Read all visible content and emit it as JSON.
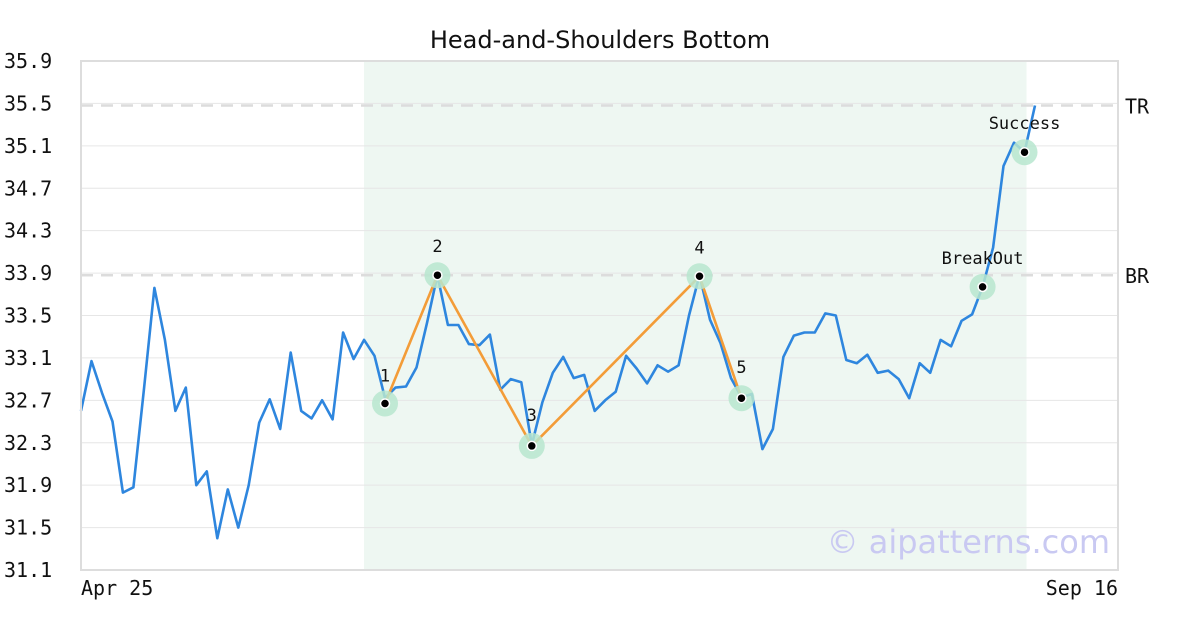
{
  "chart_data": {
    "type": "line",
    "title": "Head-and-Shoulders Bottom",
    "xlabel": "",
    "ylabel": "",
    "ylim": [
      31.1,
      35.9
    ],
    "yticks": [
      "35.9",
      "35.5",
      "35.1",
      "34.7",
      "34.3",
      "33.9",
      "33.5",
      "33.1",
      "32.7",
      "32.3",
      "31.9",
      "31.5",
      "31.1"
    ],
    "xtick_labels": [
      "Apr 25",
      "Sep 16"
    ],
    "grid": true,
    "series": [
      {
        "color": "#2e86de",
        "values": [
          32.6,
          33.07,
          32.77,
          32.5,
          31.83,
          31.88,
          32.8,
          33.76,
          33.27,
          32.6,
          32.82,
          31.9,
          32.03,
          31.4,
          31.86,
          31.5,
          31.9,
          32.49,
          32.71,
          32.43,
          33.15,
          32.6,
          32.53,
          32.7,
          32.52,
          33.34,
          33.09,
          33.27,
          33.12,
          32.72,
          32.82,
          32.83,
          33.01,
          33.43,
          33.88,
          33.41,
          33.41,
          33.23,
          33.22,
          33.32,
          32.8,
          32.9,
          32.87,
          32.28,
          32.68,
          32.96,
          33.11,
          32.91,
          32.94,
          32.6,
          32.7,
          32.78,
          33.12,
          33.0,
          32.86,
          33.03,
          32.97,
          33.03,
          33.5,
          33.88,
          33.46,
          33.24,
          32.91,
          32.73,
          32.76,
          32.24,
          32.43,
          33.11,
          33.31,
          33.34,
          33.34,
          33.52,
          33.5,
          33.08,
          33.05,
          33.13,
          32.96,
          32.98,
          32.9,
          32.72,
          33.05,
          32.96,
          33.27,
          33.21,
          33.45,
          33.51,
          33.77,
          34.14,
          34.91,
          35.13,
          35.04,
          35.48
        ]
      }
    ],
    "pattern": {
      "color": "#f39c38",
      "points": [
        {
          "label": "1",
          "x": 29,
          "y": 32.67
        },
        {
          "label": "2",
          "x": 34,
          "y": 33.88
        },
        {
          "label": "3",
          "x": 43,
          "y": 32.27
        },
        {
          "label": "4",
          "x": 59,
          "y": 33.87
        },
        {
          "label": "5",
          "x": 63,
          "y": 32.72
        }
      ]
    },
    "markers": [
      {
        "label": "BreakOut",
        "x": 86,
        "y": 33.77
      },
      {
        "label": "Success",
        "x": 90,
        "y": 35.04
      }
    ],
    "levels": [
      {
        "label": "TR",
        "y": 35.48
      },
      {
        "label": "BR",
        "y": 33.88
      }
    ],
    "highlight_range": [
      27,
      90
    ],
    "watermark": "© aipatterns.com"
  }
}
